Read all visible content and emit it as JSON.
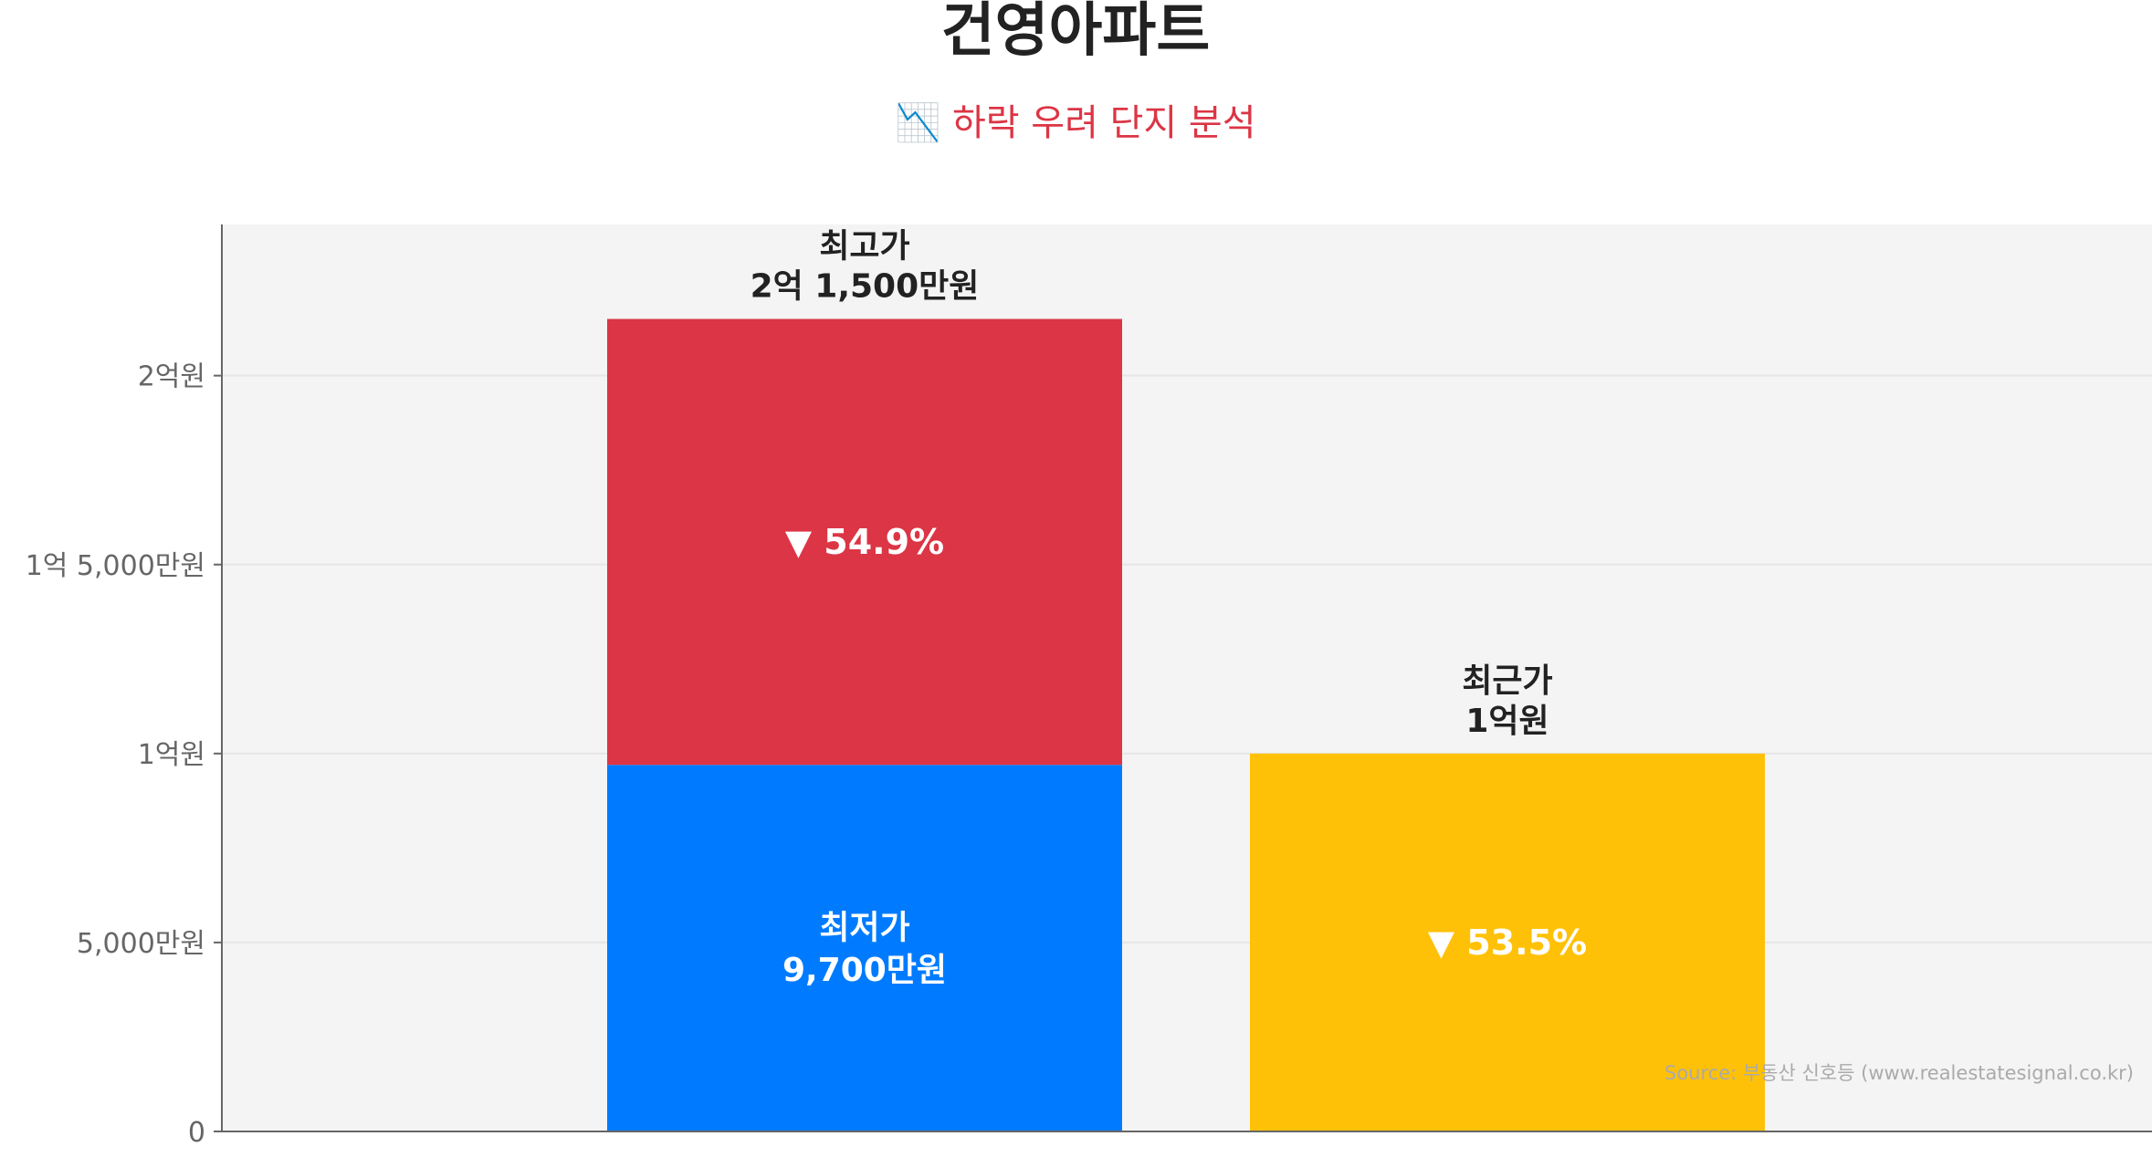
{
  "chart_data": {
    "type": "bar",
    "title": "건영아파트",
    "subtitle": "📉 하락 우려 단지 분석",
    "subtitle_icon": "chart-decreasing-icon",
    "ylim": [
      0,
      24000
    ],
    "y_ticks": [
      {
        "value": 0,
        "label": "0"
      },
      {
        "value": 5000,
        "label": "5,000만원"
      },
      {
        "value": 10000,
        "label": "1억원"
      },
      {
        "value": 15000,
        "label": "1억 5,000만원"
      },
      {
        "value": 20000,
        "label": "2억원"
      }
    ],
    "grid": true,
    "unit": "만원",
    "bars": [
      {
        "id": "peak",
        "segments": [
          {
            "id": "lowest",
            "start": 0,
            "end": 9700,
            "color": "#007bff",
            "inner_label": [
              "최저가",
              "9,700만원"
            ],
            "inner_label_color": "#ffffff"
          },
          {
            "id": "drop",
            "start": 9700,
            "end": 21500,
            "color": "#dc3545",
            "inner_label": [
              "▼ 54.9%"
            ],
            "inner_label_color": "#ffffff"
          }
        ],
        "top_label": [
          "최고가",
          "2억 1,500만원"
        ]
      },
      {
        "id": "recent",
        "segments": [
          {
            "id": "recent-value",
            "start": 0,
            "end": 10000,
            "color": "#ffc107",
            "inner_label": [
              "▼ 53.5%"
            ],
            "inner_label_color": "#ffffff"
          }
        ],
        "top_label": [
          "최근가",
          "1억원"
        ]
      }
    ],
    "values": {
      "최고가": 21500,
      "최저가": 9700,
      "최근가": 10000
    },
    "drop_from_peak_to_lowest_pct": 54.9,
    "drop_from_peak_to_recent_pct": 53.5,
    "source": "Source: 부동산 신호등 (www.realestatesignal.co.kr)",
    "colors": {
      "plot_background": "#f4f4f4",
      "grid": "#e6e6e6",
      "axis": "#666666",
      "label_dark": "#222222"
    }
  }
}
